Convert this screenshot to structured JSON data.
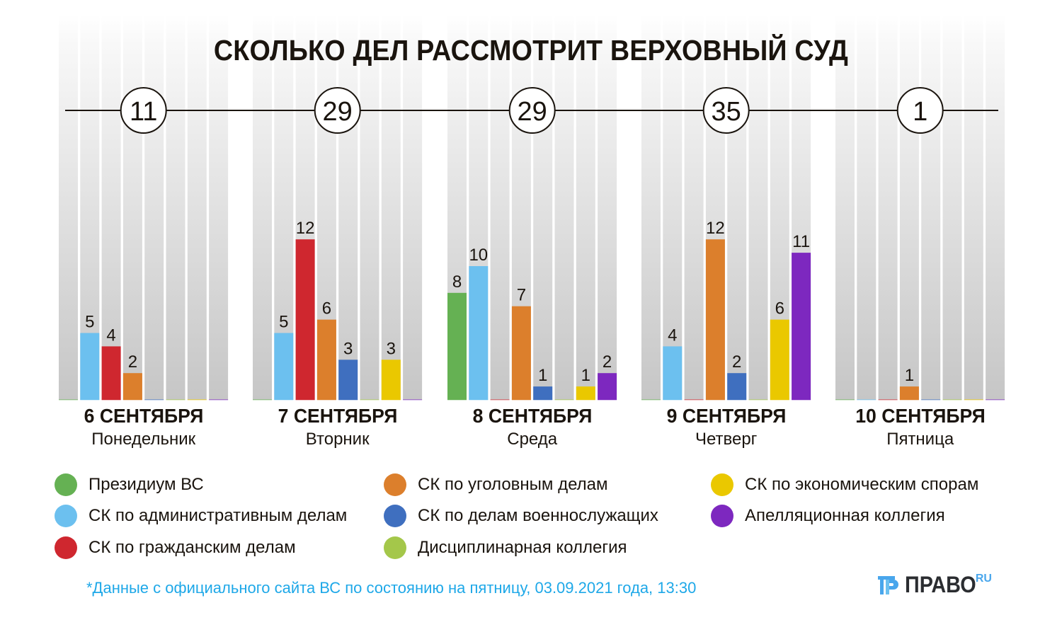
{
  "chart_data": {
    "type": "bar",
    "title": "СКОЛЬКО ДЕЛ РАССМОТРИТ ВЕРХОВНЫЙ СУД",
    "xlabel": "",
    "ylabel": "",
    "ylim": [
      0,
      12
    ],
    "grid": false,
    "legend_position": "bottom",
    "categories": [
      {
        "date": "6 СЕНТЯБРЯ",
        "weekday": "Понедельник",
        "total": "11"
      },
      {
        "date": "7 СЕНТЯБРЯ",
        "weekday": "Вторник",
        "total": "29"
      },
      {
        "date": "8 СЕНТЯБРЯ",
        "weekday": "Среда",
        "total": "29"
      },
      {
        "date": "9 СЕНТЯБРЯ",
        "weekday": "Четверг",
        "total": "35"
      },
      {
        "date": "10 СЕНТЯБРЯ",
        "weekday": "Пятница",
        "total": "1"
      }
    ],
    "series": [
      {
        "name": "Президиум ВС",
        "color": "#65b153",
        "values": [
          0,
          0,
          8,
          0,
          0
        ]
      },
      {
        "name": "СК по административным делам",
        "color": "#6cc0ef",
        "values": [
          5,
          5,
          10,
          4,
          0
        ]
      },
      {
        "name": "СК по гражданским делам",
        "color": "#cf272f",
        "values": [
          4,
          12,
          0,
          0,
          0
        ]
      },
      {
        "name": "СК по уголовным делам",
        "color": "#dc7f2c",
        "values": [
          2,
          6,
          7,
          12,
          1
        ]
      },
      {
        "name": "СК по делам военнослужащих",
        "color": "#3f6fbf",
        "values": [
          0,
          3,
          1,
          2,
          0
        ]
      },
      {
        "name": "Дисциплинарная коллегия",
        "color": "#a4c74a",
        "values": [
          0,
          0,
          0,
          0,
          0
        ]
      },
      {
        "name": "СК по экономическим спорам",
        "color": "#eac800",
        "values": [
          0,
          3,
          1,
          6,
          0
        ]
      },
      {
        "name": "Апелляционная коллегия",
        "color": "#7d28bf",
        "values": [
          0,
          0,
          2,
          11,
          0
        ]
      }
    ]
  },
  "footnote": "*Данные с официального сайта ВС по состоянию на пятницу, 03.09.2021 года, 13:30",
  "logo": {
    "name": "ПРАВО",
    "suffix": "RU"
  },
  "colors": {
    "text": "#1a140e",
    "footnote": "#1ea8e8",
    "column_bg_top": "#f7f7f7",
    "column_bg_bottom": "#c8c8c8"
  }
}
